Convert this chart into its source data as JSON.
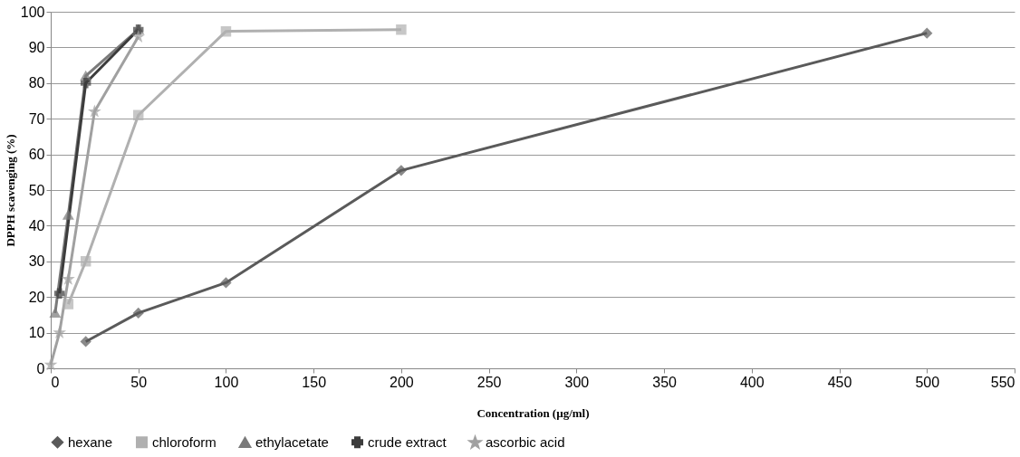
{
  "chart_data": {
    "type": "line",
    "xlabel": "Concentration (µg/ml)",
    "ylabel": "DPPH scavenging (%)",
    "xlim": [
      0,
      550
    ],
    "xticks": [
      0,
      50,
      100,
      150,
      200,
      250,
      300,
      350,
      400,
      450,
      500,
      550
    ],
    "ylim": [
      0,
      100
    ],
    "yticks": [
      0,
      10,
      20,
      30,
      40,
      50,
      60,
      70,
      80,
      90,
      100
    ],
    "grid": "y",
    "legend": "bottom",
    "series": [
      {
        "name": "hexane",
        "color": "#5a5a5a",
        "marker": "diamond",
        "x": [
          20,
          50,
          100,
          200,
          500
        ],
        "values": [
          7.5,
          15.5,
          24,
          55.5,
          94
        ]
      },
      {
        "name": "chloroform",
        "color": "#b0b0b0",
        "marker": "square",
        "x": [
          10,
          20,
          50,
          100,
          200
        ],
        "values": [
          18,
          30,
          71,
          94.5,
          95
        ]
      },
      {
        "name": "ethylacetate",
        "color": "#7a7a7a",
        "marker": "triangle",
        "x": [
          2.5,
          10,
          20,
          50
        ],
        "values": [
          15.5,
          43,
          82,
          95
        ]
      },
      {
        "name": "crude extract",
        "color": "#3c3c3c",
        "marker": "cross",
        "x": [
          5,
          20,
          50
        ],
        "values": [
          21,
          80,
          95
        ]
      },
      {
        "name": "ascorbic acid",
        "color": "#a0a0a0",
        "marker": "star",
        "x": [
          0,
          5,
          10,
          25,
          50
        ],
        "values": [
          1,
          10,
          25,
          72,
          93
        ]
      }
    ]
  }
}
